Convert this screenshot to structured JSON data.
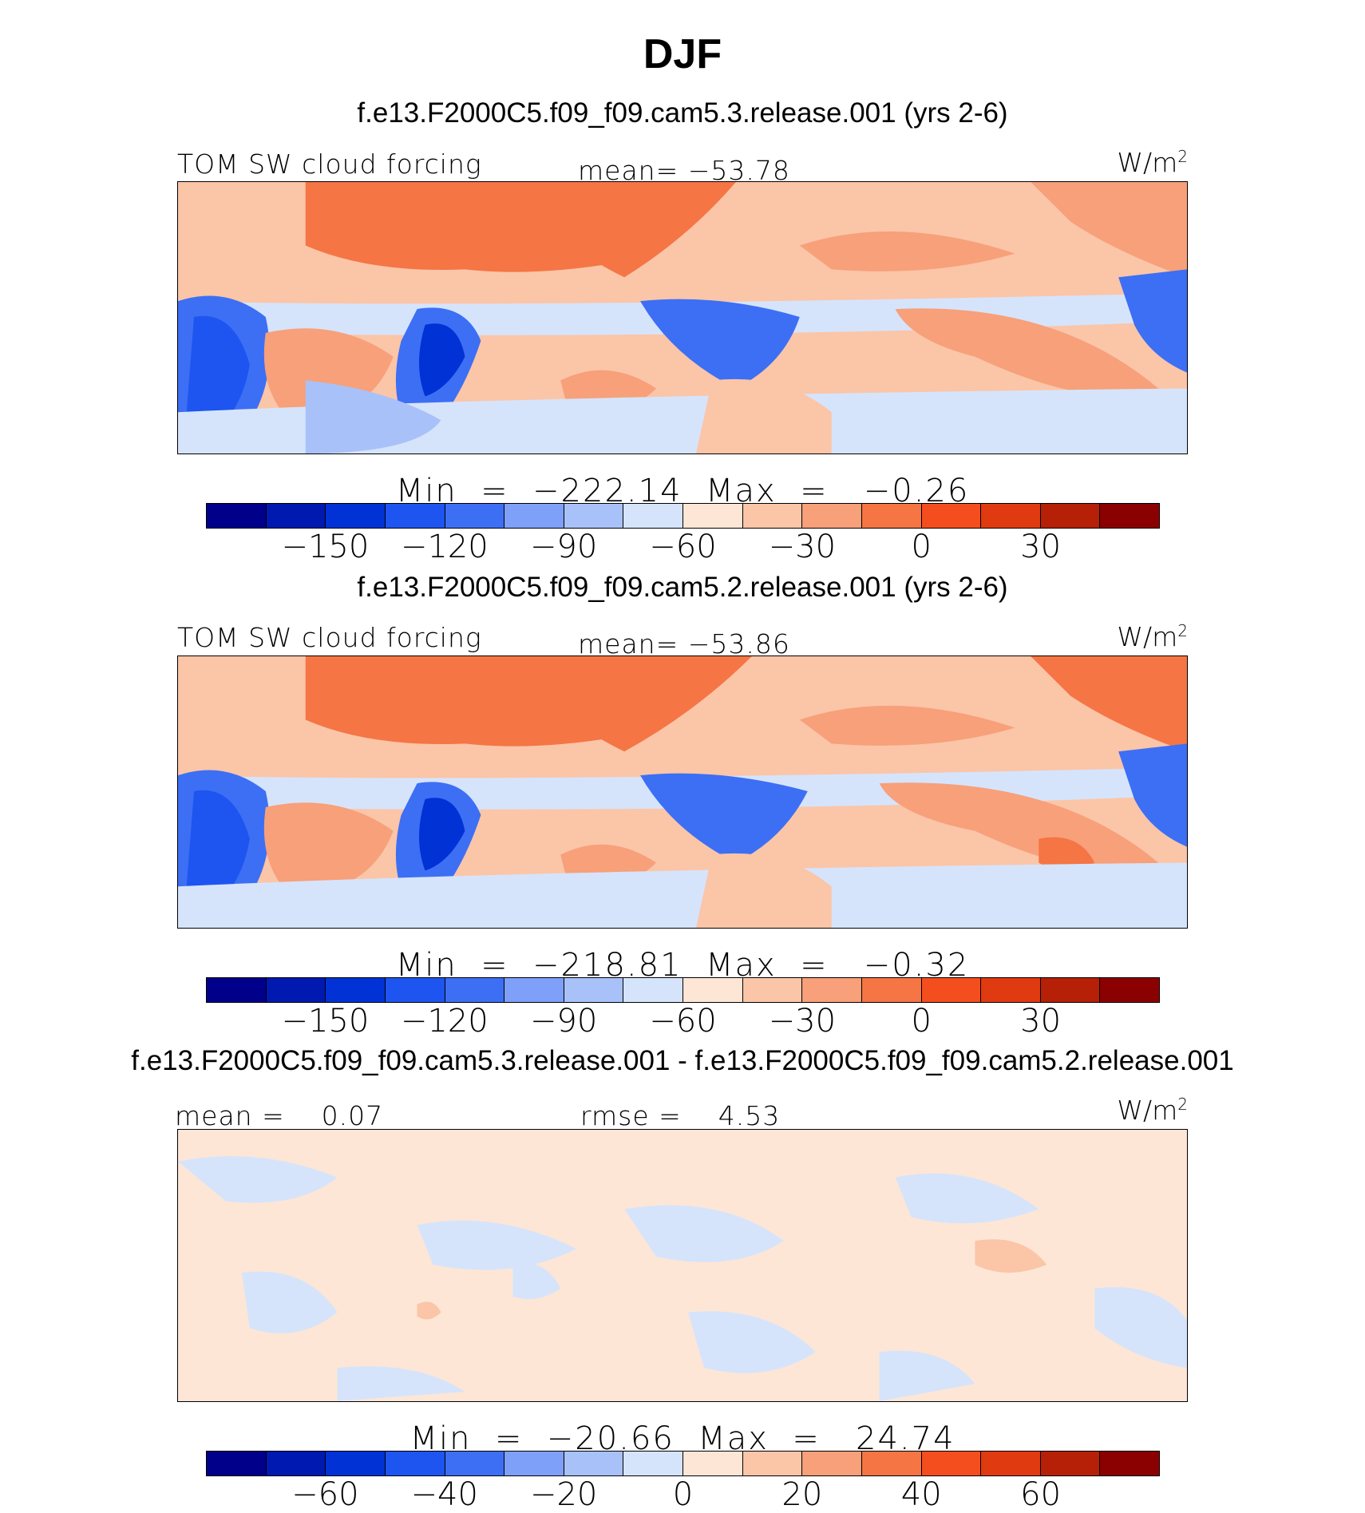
{
  "title": "DJF",
  "colors": [
    "#00008b",
    "#0019b0",
    "#0032d5",
    "#1e55f0",
    "#3d6ff4",
    "#7fa0f8",
    "#a9c1f9",
    "#d6e4fb",
    "#fde6d6",
    "#fbc5a8",
    "#f7a07a",
    "#f57545",
    "#f54e1e",
    "#e03a10",
    "#b52007",
    "#8b0000"
  ],
  "panels": [
    {
      "case": "f.e13.F2000C5.f09_f09.cam5.3.release.001 (yrs 2-6)",
      "left_label": "TOM SW cloud forcing",
      "center_label": "mean= −53.78",
      "units": "W/m",
      "units_sup": "2",
      "minmax": "Min  =  −222.14  Max  =   −0.26",
      "colorbar_ticks": [
        "−150",
        "−120",
        "−90",
        "−60",
        "−30",
        "0",
        "30"
      ]
    },
    {
      "case": "f.e13.F2000C5.f09_f09.cam5.2.release.001 (yrs 2-6)",
      "left_label": "TOM SW cloud forcing",
      "center_label": "mean= −53.86",
      "units": "W/m",
      "units_sup": "2",
      "minmax": "Min  =  −218.81  Max  =   −0.32",
      "colorbar_ticks": [
        "−150",
        "−120",
        "−90",
        "−60",
        "−30",
        "0",
        "30"
      ]
    },
    {
      "case": "f.e13.F2000C5.f09_f09.cam5.3.release.001 - f.e13.F2000C5.f09_f09.cam5.2.release.001",
      "left_label": "mean =    0.07",
      "center_label": "rmse =    4.53",
      "units": "W/m",
      "units_sup": "2",
      "minmax": "Min  =  −20.66  Max  =   24.74",
      "colorbar_ticks": [
        "−60",
        "−40",
        "−20",
        "0",
        "20",
        "40",
        "60"
      ]
    }
  ]
}
